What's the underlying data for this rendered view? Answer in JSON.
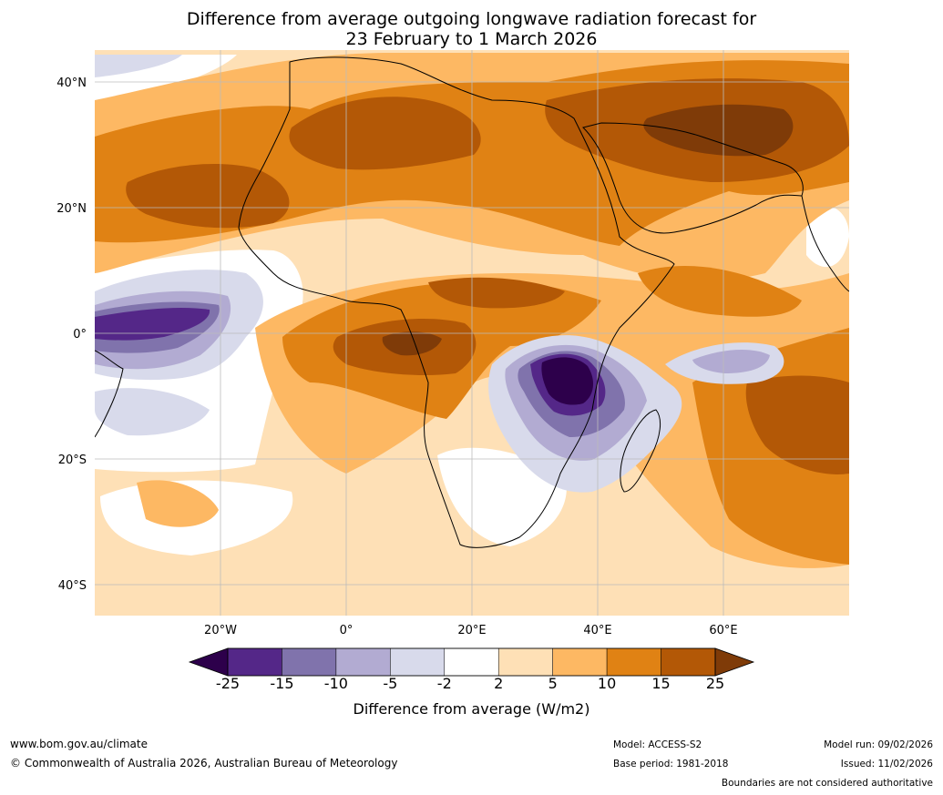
{
  "title_line1": "Difference from average outgoing longwave radiation forecast for",
  "title_line2": "23 February to 1 March 2026",
  "lat_labels": [
    "40°N",
    "20°N",
    "0°",
    "20°S",
    "40°S"
  ],
  "lon_labels": [
    "20°W",
    "0°",
    "20°E",
    "40°E",
    "60°E"
  ],
  "colorbar": {
    "ticks": [
      "-25",
      "-15",
      "-10",
      "-5",
      "-2",
      "2",
      "5",
      "10",
      "15",
      "25"
    ],
    "colors": [
      "#2d004b",
      "#542788",
      "#8073ac",
      "#b2abd2",
      "#d8daeb",
      "#ffffff",
      "#fee0b6",
      "#fdb863",
      "#e08214",
      "#b35806",
      "#7f3b08"
    ],
    "title": "Difference from average (W/m2)"
  },
  "footer": {
    "url": "www.bom.gov.au/climate",
    "copyright": "© Commonwealth of Australia 2026, Australian Bureau of Meteorology",
    "model": "Model: ACCESS-S2",
    "base_period": "Base period: 1981-2018",
    "model_run": "Model run: 09/02/2026",
    "issued": "Issued: 11/02/2026",
    "disclaimer": "Boundaries are not considered authoritative"
  }
}
